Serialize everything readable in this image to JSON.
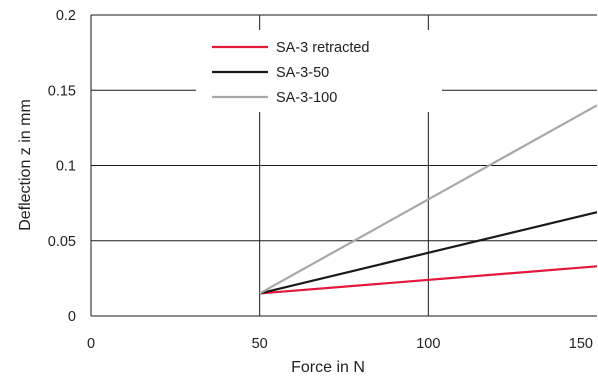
{
  "chart_data": {
    "type": "line",
    "title": "",
    "xlabel": "Force in N",
    "ylabel": "Deflection z in mm",
    "xlim": [
      0,
      150
    ],
    "ylim": [
      0,
      0.2
    ],
    "x_ticks": [
      "0",
      "50",
      "100",
      "150"
    ],
    "y_ticks": [
      "0",
      "0.05",
      "0.1",
      "0.15",
      "0.2"
    ],
    "grid": true,
    "legend_position": "top-center",
    "series": [
      {
        "name": "SA-3 retracted",
        "color": "#e2183c",
        "x": [
          50,
          150
        ],
        "y": [
          0.015,
          0.033
        ]
      },
      {
        "name": "SA-3-50",
        "color": "#1a1a1a",
        "x": [
          50,
          150
        ],
        "y": [
          0.015,
          0.069
        ]
      },
      {
        "name": "SA-3-100",
        "color": "#a8a8a8",
        "x": [
          50,
          150
        ],
        "y": [
          0.015,
          0.14
        ]
      }
    ]
  }
}
